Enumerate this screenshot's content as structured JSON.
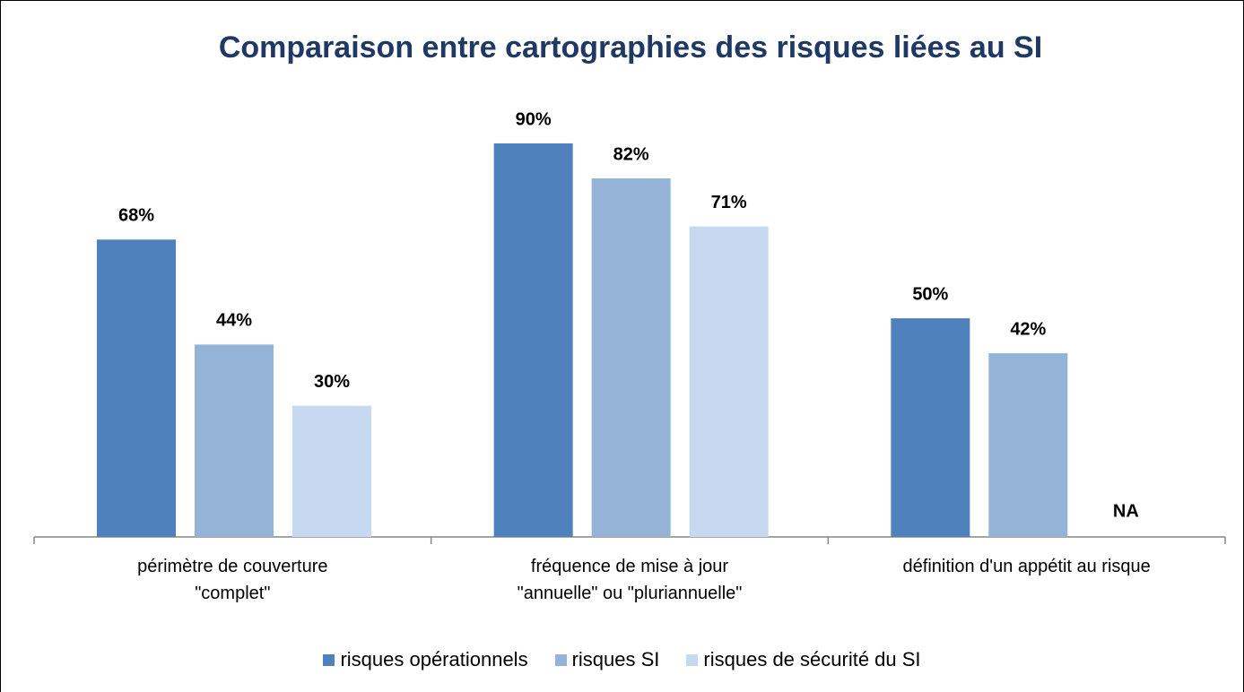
{
  "chart_data": {
    "type": "bar",
    "title": "Comparaison entre cartographies des risques liées au SI",
    "categories": [
      "périmètre de couverture\n\"complet\"",
      "fréquence de mise à jour\n\"annuelle\" ou \"pluriannuelle\"",
      "définition d'un appétit au risque"
    ],
    "series": [
      {
        "name": "risques opérationnels",
        "color": "#4f81bd",
        "values": [
          68,
          90,
          50
        ],
        "value_labels": [
          "68%",
          "90%",
          "50%"
        ]
      },
      {
        "name": "risques SI",
        "color": "#95b3d7",
        "values": [
          44,
          82,
          42
        ],
        "value_labels": [
          "44%",
          "82%",
          "42%"
        ]
      },
      {
        "name": "risques de sécurité du SI",
        "color": "#c6d9f1",
        "values": [
          30,
          71,
          null
        ],
        "value_labels": [
          "30%",
          "71%",
          "NA"
        ]
      }
    ],
    "ylim": [
      0,
      100
    ],
    "legend": "bottom"
  }
}
